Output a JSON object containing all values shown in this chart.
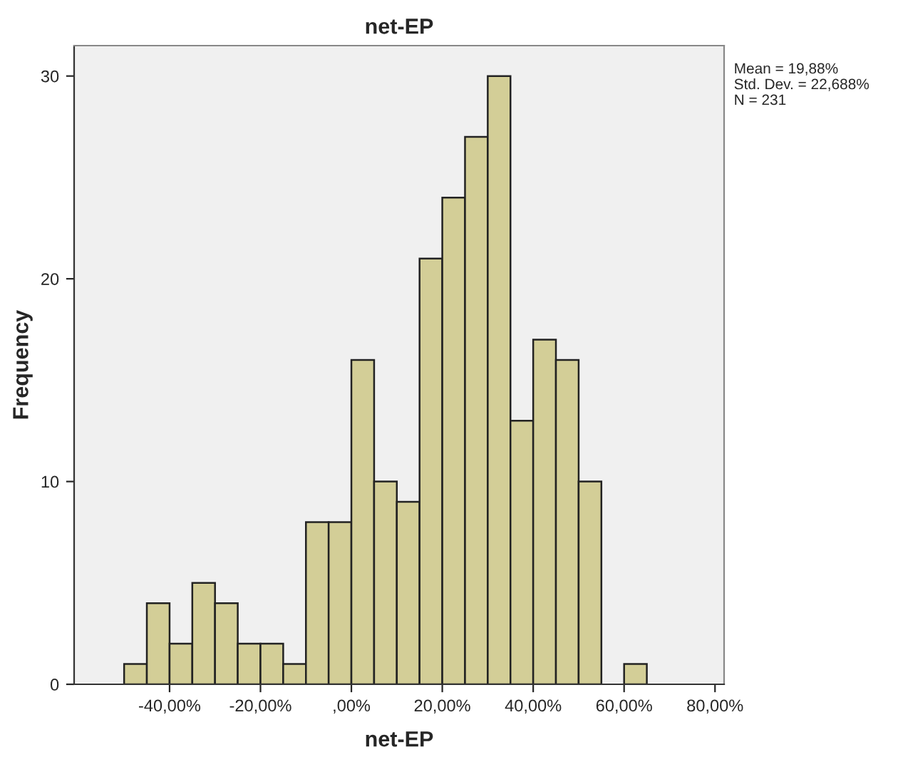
{
  "chart_data": {
    "type": "histogram",
    "title": "net-EP",
    "xlabel": "net-EP",
    "ylabel": "Frequency",
    "bins": [
      -50,
      -45,
      -40,
      -35,
      -30,
      -25,
      -20,
      -15,
      -10,
      -5,
      0,
      5,
      10,
      15,
      20,
      25,
      30,
      35,
      40,
      45,
      50,
      55,
      60,
      65
    ],
    "values": [
      1,
      4,
      2,
      5,
      4,
      2,
      2,
      1,
      8,
      8,
      16,
      10,
      9,
      21,
      24,
      27,
      30,
      13,
      17,
      16,
      10,
      0,
      1
    ],
    "color": "#d3ce97",
    "xlim": [
      -61,
      82
    ],
    "xticks": [
      {
        "value": -40,
        "label": "-40,00%"
      },
      {
        "value": -20,
        "label": "-20,00%"
      },
      {
        "value": 0,
        "label": ",00%"
      },
      {
        "value": 20,
        "label": "20,00%"
      },
      {
        "value": 40,
        "label": "40,00%"
      },
      {
        "value": 60,
        "label": "60,00%"
      },
      {
        "value": 80,
        "label": "80,00%"
      }
    ],
    "ylim": [
      0,
      31.5
    ],
    "yticks": [
      0,
      10,
      20,
      30
    ],
    "grid": false,
    "legend": false,
    "annotations": [
      "Mean = 19,88%",
      "Std. Dev. = 22,688%",
      "N = 231"
    ]
  }
}
